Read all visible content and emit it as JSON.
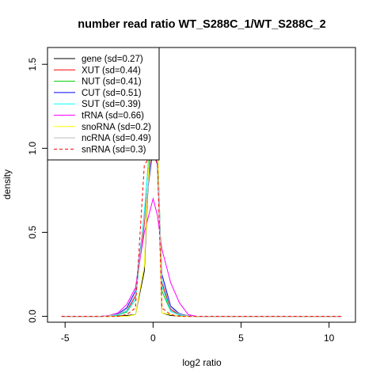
{
  "chart_data": {
    "type": "line",
    "title": "number read ratio WT_S288C_1/WT_S288C_2",
    "xlabel": "log2 ratio",
    "ylabel": "density",
    "xlim": [
      -6,
      11.5
    ],
    "ylim": [
      -0.035,
      1.6
    ],
    "xticks": [
      -5,
      0,
      5,
      10
    ],
    "yticks": [
      0.0,
      0.5,
      1.0,
      1.5
    ],
    "xtick_labels": [
      "-5",
      "0",
      "5",
      "10"
    ],
    "ytick_labels": [
      "0.0",
      "0.5",
      "1.0",
      "1.5"
    ],
    "grid": false,
    "legend_position": "top-left",
    "series": [
      {
        "name": "gene (sd=0.27)",
        "color": "#000000",
        "dash": "solid",
        "x": [
          -5.2,
          -3.0,
          -2.5,
          -2.0,
          -1.5,
          -1.0,
          -0.5,
          0.0,
          0.25,
          0.5,
          1.0,
          1.5,
          2.0,
          2.5,
          10.7
        ],
        "y": [
          0,
          0,
          0,
          0.002,
          0.005,
          0.01,
          0.27,
          1.45,
          1.05,
          0.02,
          0.005,
          0.002,
          0,
          0,
          0
        ]
      },
      {
        "name": "XUT (sd=0.44)",
        "color": "#ff0000",
        "dash": "solid",
        "x": [
          -5.2,
          -3.0,
          -2.5,
          -2.0,
          -1.5,
          -1.0,
          -0.5,
          0.0,
          0.25,
          0.5,
          1.0,
          1.5,
          2.0,
          2.5,
          10.7
        ],
        "y": [
          0,
          0,
          0.003,
          0.01,
          0.03,
          0.12,
          0.55,
          1.1,
          1.0,
          0.2,
          0.04,
          0.01,
          0.002,
          0,
          0
        ]
      },
      {
        "name": "NUT (sd=0.41)",
        "color": "#00cd00",
        "dash": "solid",
        "x": [
          -5.2,
          -3.0,
          -2.5,
          -2.0,
          -1.5,
          -1.0,
          -0.5,
          0.0,
          0.25,
          0.5,
          1.0,
          1.5,
          2.0,
          2.5,
          10.7
        ],
        "y": [
          0,
          0,
          0.002,
          0.008,
          0.025,
          0.1,
          0.6,
          1.3,
          1.05,
          0.15,
          0.03,
          0.008,
          0.002,
          0,
          0
        ]
      },
      {
        "name": "CUT (sd=0.51)",
        "color": "#0000ff",
        "dash": "solid",
        "x": [
          -5.2,
          -3.0,
          -2.5,
          -2.0,
          -1.5,
          -1.0,
          -0.5,
          0.0,
          0.25,
          0.5,
          1.0,
          1.5,
          2.0,
          2.5,
          10.7
        ],
        "y": [
          0,
          0,
          0.005,
          0.015,
          0.05,
          0.15,
          0.6,
          1.0,
          0.9,
          0.25,
          0.06,
          0.015,
          0.003,
          0,
          0
        ]
      },
      {
        "name": "SUT (sd=0.39)",
        "color": "#00ffff",
        "dash": "solid",
        "x": [
          -5.2,
          -3.0,
          -2.5,
          -2.0,
          -1.5,
          -1.0,
          -0.5,
          0.0,
          0.25,
          0.5,
          1.0,
          1.5,
          2.0,
          2.5,
          10.7
        ],
        "y": [
          0,
          0,
          0.002,
          0.008,
          0.03,
          0.1,
          0.62,
          1.25,
          1.0,
          0.18,
          0.03,
          0.008,
          0.002,
          0,
          0
        ]
      },
      {
        "name": "tRNA (sd=0.66)",
        "color": "#ff00ff",
        "dash": "solid",
        "x": [
          -5.2,
          -3.0,
          -2.5,
          -2.0,
          -1.5,
          -1.0,
          -0.5,
          0.0,
          0.25,
          0.5,
          1.0,
          1.5,
          2.0,
          2.5,
          10.7
        ],
        "y": [
          0,
          0,
          0.005,
          0.02,
          0.07,
          0.17,
          0.5,
          0.7,
          0.6,
          0.4,
          0.2,
          0.08,
          0.01,
          0,
          0
        ]
      },
      {
        "name": "snoRNA (sd=0.2)",
        "color": "#ffff00",
        "dash": "solid",
        "x": [
          -5.2,
          -3.0,
          -2.5,
          -2.0,
          -1.5,
          -1.0,
          -0.5,
          0.0,
          0.25,
          0.5,
          1.0,
          1.5,
          2.0,
          2.5,
          10.7
        ],
        "y": [
          0,
          0,
          0,
          0,
          0,
          0.01,
          0.3,
          1.48,
          1.1,
          0.02,
          0.01,
          0,
          0,
          0,
          0
        ]
      },
      {
        "name": "ncRNA (sd=0.49)",
        "color": "#bebebe",
        "dash": "solid",
        "x": [
          -5.2,
          -3.0,
          -2.5,
          -2.0,
          -1.5,
          -1.0,
          -0.5,
          0.0,
          0.25,
          0.5,
          1.0,
          1.5,
          2.0,
          2.5,
          10.7
        ],
        "y": [
          0,
          0,
          0.004,
          0.012,
          0.04,
          0.13,
          0.58,
          1.05,
          0.95,
          0.22,
          0.05,
          0.012,
          0.002,
          0,
          0
        ]
      },
      {
        "name": "snRNA (sd=0.3)",
        "color": "#ff0000",
        "dash": "dashed",
        "x": [
          -5.2,
          -3.0,
          -2.5,
          -2.0,
          -1.5,
          -1.0,
          -0.5,
          0.0,
          0.25,
          0.5,
          1.0,
          1.5,
          2.0,
          2.5,
          10.7
        ],
        "y": [
          0,
          0,
          0,
          0,
          0.01,
          0.05,
          0.9,
          0.98,
          0.9,
          0.05,
          0.01,
          0,
          0,
          0,
          0
        ]
      }
    ]
  }
}
